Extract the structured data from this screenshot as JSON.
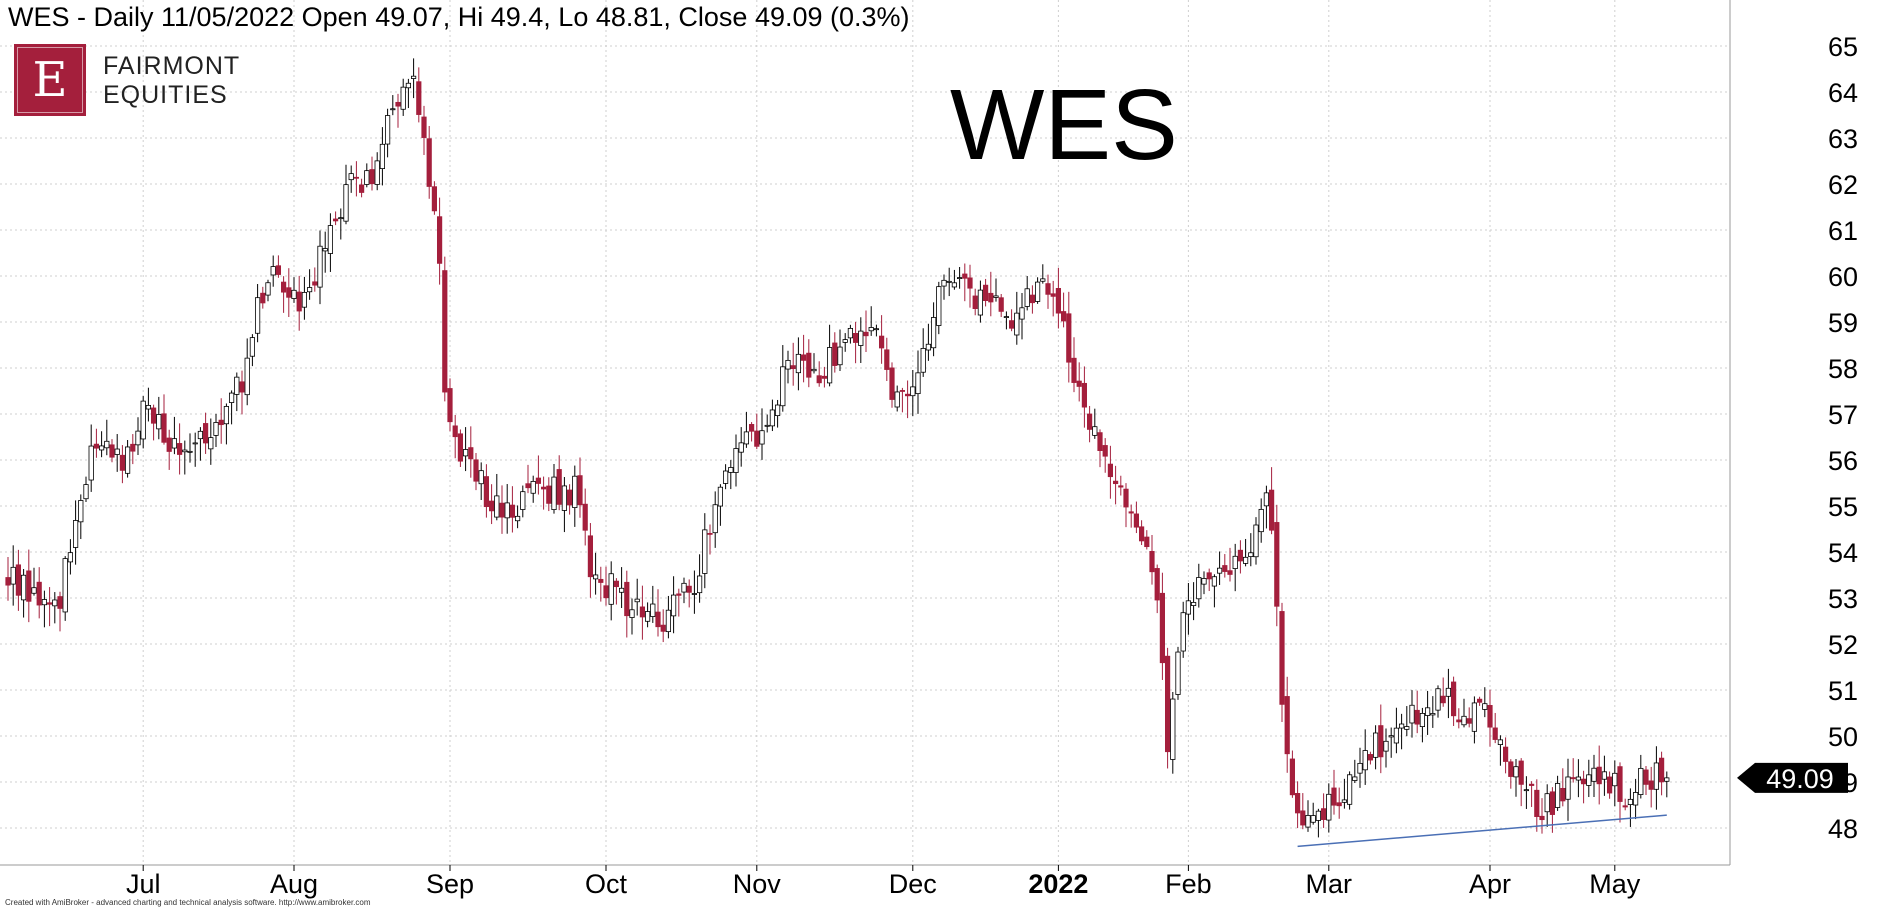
{
  "header": {
    "text": "WES - Daily 11/05/2022 Open 49.07, Hi 49.4, Lo 48.81, Close 49.09 (0.3%)"
  },
  "brand": {
    "logo_letter": "E",
    "line1": "FAIRMONT",
    "line2": "EQUITIES"
  },
  "watermark": "WES",
  "credit": "Created with AmiBroker - advanced charting and technical analysis software. http://www.amibroker.com",
  "colors": {
    "down": "#a41f3c",
    "up": "#ffffff",
    "wick": "#000000",
    "grid": "#cfcfcf",
    "trendline": "#4a6fb5",
    "last_price_bg": "#000000"
  },
  "chart_data": {
    "type": "candlestick",
    "title": "WES",
    "ylim": [
      47.5,
      65.5
    ],
    "y_ticks": [
      48,
      49,
      50,
      51,
      52,
      53,
      54,
      55,
      56,
      57,
      58,
      59,
      60,
      61,
      62,
      63,
      64,
      65
    ],
    "x_ticks": [
      {
        "label": "Jul",
        "index": 26,
        "bold": false
      },
      {
        "label": "Aug",
        "index": 55,
        "bold": false
      },
      {
        "label": "Sep",
        "index": 85,
        "bold": false
      },
      {
        "label": "Oct",
        "index": 115,
        "bold": false
      },
      {
        "label": "Nov",
        "index": 144,
        "bold": false
      },
      {
        "label": "Dec",
        "index": 174,
        "bold": false
      },
      {
        "label": "2022",
        "index": 202,
        "bold": true
      },
      {
        "label": "Feb",
        "index": 227,
        "bold": false
      },
      {
        "label": "Mar",
        "index": 254,
        "bold": false
      },
      {
        "label": "Apr",
        "index": 285,
        "bold": false
      },
      {
        "label": "May",
        "index": 309,
        "bold": false
      }
    ],
    "last_price": "49.09",
    "grid": true,
    "trendline": {
      "from": {
        "index": 248,
        "value": 47.6
      },
      "to": {
        "index": 319,
        "value": 48.28
      }
    },
    "n_bars": 320,
    "anchors": [
      [
        0,
        53.4
      ],
      [
        5,
        53.1
      ],
      [
        10,
        52.9
      ],
      [
        13,
        54.8
      ],
      [
        17,
        56.6
      ],
      [
        22,
        56.1
      ],
      [
        27,
        57.2
      ],
      [
        32,
        56.3
      ],
      [
        38,
        56.7
      ],
      [
        45,
        57.6
      ],
      [
        48,
        59.2
      ],
      [
        51,
        60.4
      ],
      [
        56,
        59.2
      ],
      [
        60,
        60.3
      ],
      [
        65,
        61.8
      ],
      [
        70,
        62.2
      ],
      [
        74,
        63.6
      ],
      [
        78,
        64.4
      ],
      [
        81,
        61.8
      ],
      [
        83,
        60.5
      ],
      [
        84,
        57.4
      ],
      [
        86,
        56.2
      ],
      [
        90,
        55.6
      ],
      [
        95,
        54.8
      ],
      [
        102,
        55.4
      ],
      [
        109,
        55.3
      ],
      [
        112,
        53.6
      ],
      [
        117,
        53.1
      ],
      [
        122,
        52.7
      ],
      [
        127,
        52.6
      ],
      [
        132,
        53.4
      ],
      [
        137,
        55.3
      ],
      [
        141,
        56.3
      ],
      [
        146,
        56.6
      ],
      [
        150,
        58.1
      ],
      [
        156,
        57.7
      ],
      [
        161,
        58.7
      ],
      [
        167,
        59.1
      ],
      [
        170,
        57.6
      ],
      [
        174,
        57.4
      ],
      [
        178,
        59.2
      ],
      [
        182,
        60.1
      ],
      [
        185,
        59.5
      ],
      [
        190,
        59.3
      ],
      [
        194,
        59.1
      ],
      [
        198,
        59.8
      ],
      [
        201,
        59.9
      ],
      [
        204,
        58.3
      ],
      [
        208,
        56.6
      ],
      [
        212,
        55.9
      ],
      [
        215,
        54.9
      ],
      [
        218,
        54.4
      ],
      [
        221,
        52.8
      ],
      [
        223,
        49.9
      ],
      [
        226,
        52.6
      ],
      [
        230,
        53.4
      ],
      [
        236,
        53.6
      ],
      [
        240,
        54.4
      ],
      [
        242,
        55.3
      ],
      [
        244,
        53.0
      ],
      [
        245,
        50.6
      ],
      [
        247,
        48.9
      ],
      [
        250,
        48.1
      ],
      [
        255,
        48.6
      ],
      [
        259,
        48.9
      ],
      [
        262,
        49.6
      ],
      [
        267,
        50.3
      ],
      [
        272,
        50.6
      ],
      [
        276,
        50.9
      ],
      [
        281,
        50.4
      ],
      [
        283,
        51.0
      ],
      [
        286,
        49.9
      ],
      [
        290,
        49.1
      ],
      [
        294,
        48.4
      ],
      [
        297,
        48.6
      ],
      [
        301,
        49.1
      ],
      [
        306,
        49.3
      ],
      [
        311,
        48.6
      ],
      [
        315,
        49.2
      ],
      [
        319,
        49.09
      ]
    ],
    "seed": 20220511
  }
}
